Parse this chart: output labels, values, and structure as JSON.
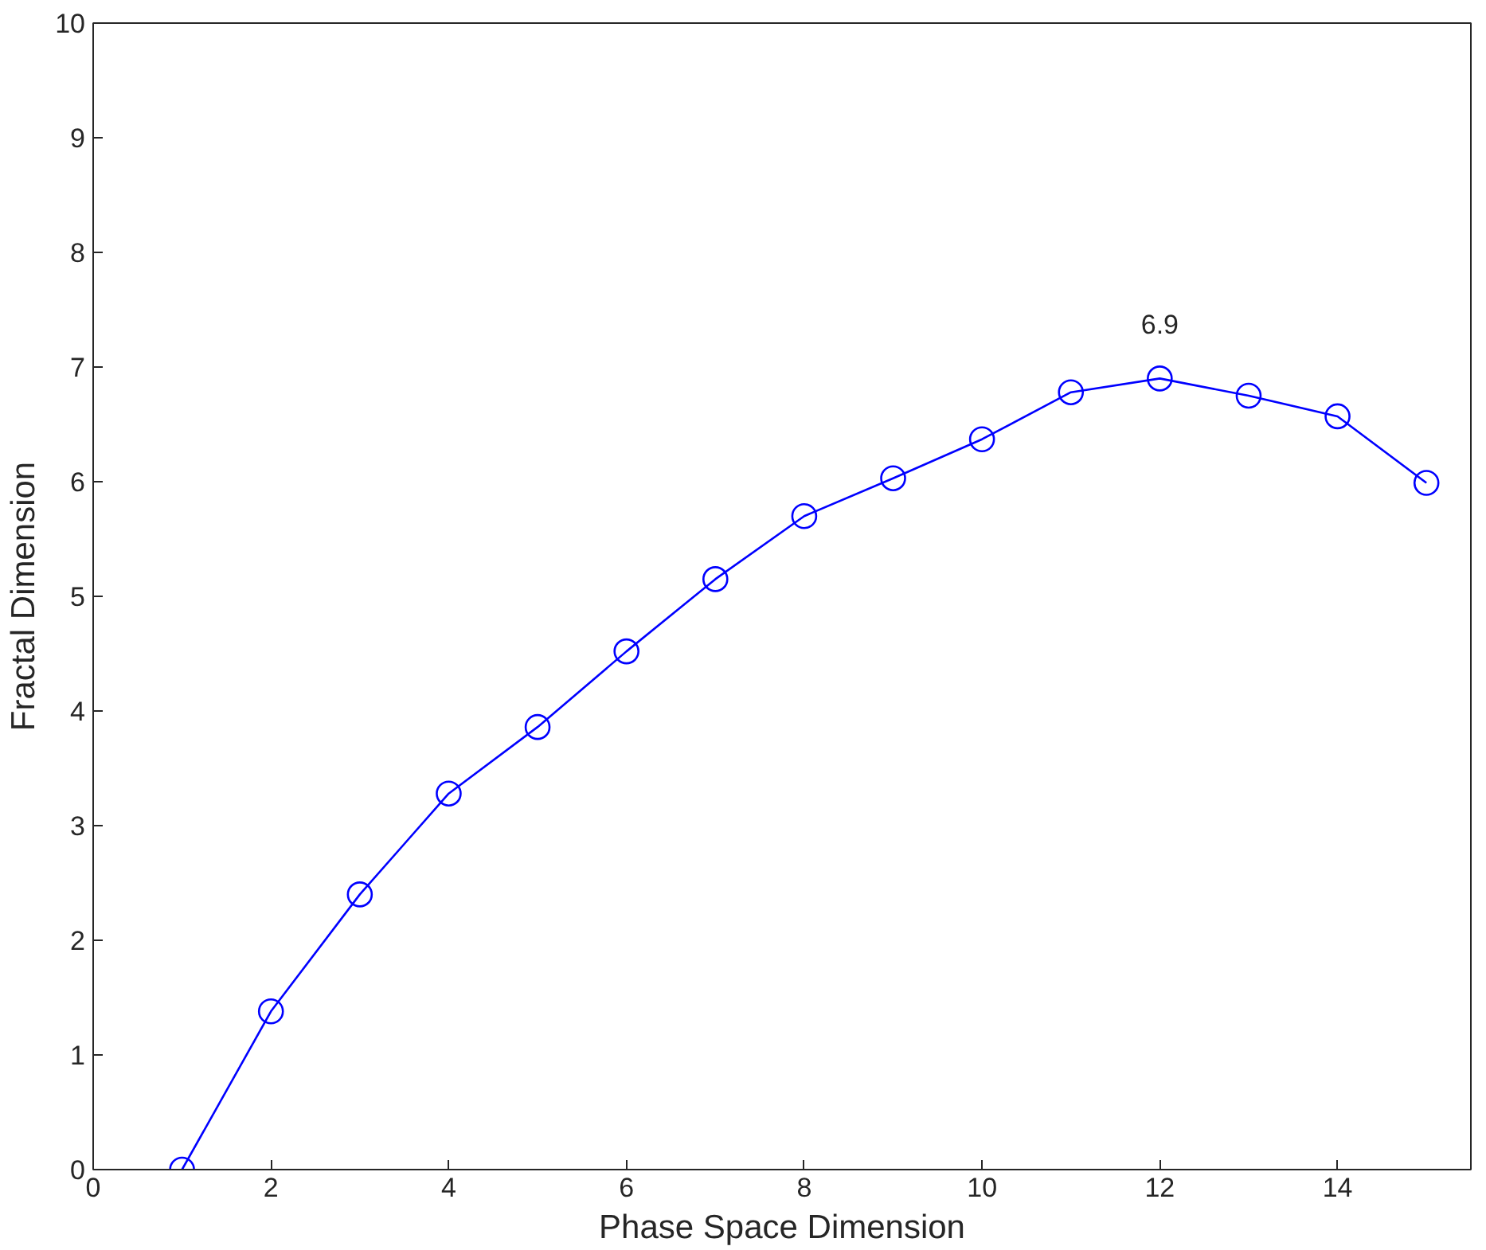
{
  "chart_data": {
    "type": "line",
    "xlabel": "Phase Space Dimension",
    "ylabel": "Fractal Dimension",
    "x": [
      1,
      2,
      3,
      4,
      5,
      6,
      7,
      8,
      9,
      10,
      11,
      12,
      13,
      14,
      15
    ],
    "series": [
      {
        "color": "#0000ff",
        "values": [
          0,
          1.38,
          2.4,
          3.28,
          3.86,
          4.52,
          5.15,
          5.7,
          6.03,
          6.37,
          6.78,
          6.9,
          6.75,
          6.57,
          5.99
        ]
      }
    ],
    "xlim": [
      0,
      15.5
    ],
    "xticks": [
      0,
      2,
      4,
      6,
      8,
      10,
      12,
      14
    ],
    "ylim": [
      0,
      10
    ],
    "yticks": [
      0,
      1,
      2,
      3,
      4,
      5,
      6,
      7,
      8,
      9,
      10
    ],
    "annotations": [
      {
        "text": "6.9",
        "x": 12,
        "y": 6.9
      }
    ],
    "grid": false,
    "marker": "circle",
    "line_style": "solid"
  }
}
